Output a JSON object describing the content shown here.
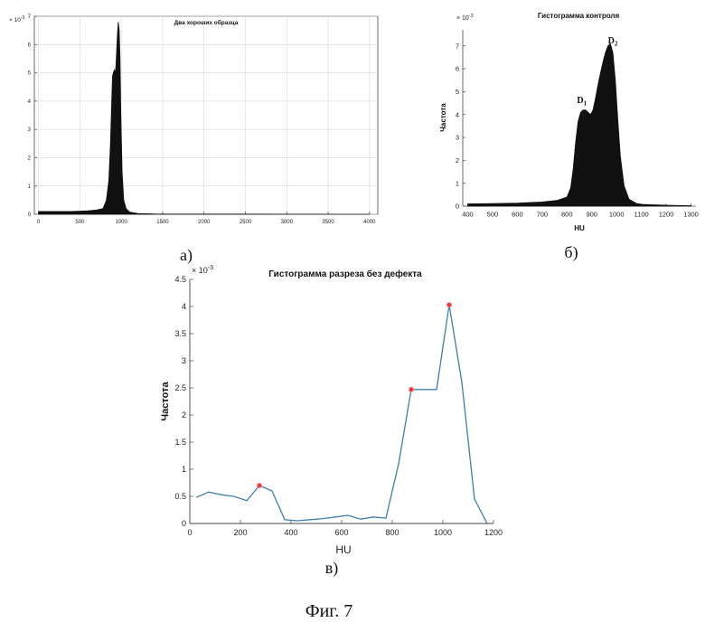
{
  "figure_caption": "Фиг. 7",
  "chart_data": [
    {
      "type": "area",
      "panel_label": "а)",
      "title": "Два хороших образца",
      "xlabel": "",
      "ylabel": "",
      "y_exponent": "× 10^-3",
      "y_exponent_base": "× 10",
      "y_exponent_power": "-3",
      "xlim": [
        -50,
        4100
      ],
      "ylim": [
        0,
        0.007
      ],
      "grid": true,
      "x_ticks": [
        "0",
        "500",
        "1000",
        "1500",
        "2000",
        "2500",
        "3000",
        "3500",
        "4000"
      ],
      "y_ticks": [
        "0",
        "1",
        "2",
        "3",
        "4",
        "5",
        "6",
        "7"
      ],
      "x": [
        0,
        200,
        400,
        600,
        700,
        780,
        820,
        850,
        870,
        885,
        895,
        905,
        915,
        925,
        935,
        945,
        955,
        965,
        975,
        985,
        995,
        1010,
        1030,
        1060,
        1100,
        1200,
        1400,
        4000
      ],
      "y": [
        0.0001,
        0.0001,
        0.0001,
        0.00012,
        0.00015,
        0.0002,
        0.0005,
        0.0012,
        0.0025,
        0.004,
        0.0049,
        0.005,
        0.0051,
        0.005,
        0.0052,
        0.0058,
        0.0064,
        0.0068,
        0.0065,
        0.0055,
        0.0035,
        0.0015,
        0.0005,
        0.0002,
        8e-05,
        3e-05,
        1e-05,
        0.0
      ]
    },
    {
      "type": "area",
      "panel_label": "б)",
      "title": "Гистограмма контроля",
      "xlabel": "HU",
      "ylabel": "Частота",
      "y_exponent": "× 10^-3",
      "y_exponent_base": "× 10",
      "y_exponent_power": "-3",
      "xlim": [
        380,
        1320
      ],
      "ylim": [
        0,
        0.0077
      ],
      "grid": false,
      "x_ticks": [
        "400",
        "500",
        "600",
        "700",
        "800",
        "900",
        "1000",
        "1100",
        "1200",
        "1300"
      ],
      "y_ticks": [
        "0",
        "1",
        "2",
        "3",
        "4",
        "5",
        "6",
        "7"
      ],
      "annotations": [
        {
          "text": "D1",
          "base": "D",
          "sub": "1",
          "x": 860,
          "y": 0.0045
        },
        {
          "text": "D2",
          "base": "D",
          "sub": "2",
          "x": 985,
          "y": 0.0071
        }
      ],
      "x": [
        400,
        500,
        600,
        700,
        760,
        800,
        815,
        825,
        835,
        845,
        855,
        865,
        875,
        885,
        895,
        905,
        915,
        925,
        935,
        945,
        955,
        965,
        975,
        985,
        995,
        1005,
        1015,
        1030,
        1050,
        1080,
        1100,
        1200,
        1300
      ],
      "y": [
        0.0001,
        0.00011,
        0.00013,
        0.00018,
        0.00025,
        0.0004,
        0.0008,
        0.0016,
        0.0028,
        0.0037,
        0.0041,
        0.0042,
        0.0042,
        0.0041,
        0.004,
        0.0042,
        0.0047,
        0.0053,
        0.0058,
        0.0063,
        0.0067,
        0.007,
        0.0071,
        0.0067,
        0.0055,
        0.0038,
        0.0022,
        0.0009,
        0.0003,
        0.00012,
        8e-05,
        4e-05,
        2e-05
      ]
    },
    {
      "type": "line",
      "panel_label": "в)",
      "title": "Гистограмма разреза без дефекта",
      "xlabel": "HU",
      "ylabel": "Частота",
      "y_exponent": "× 10^-3",
      "y_exponent_base": "× 10",
      "y_exponent_power": "-3",
      "xlim": [
        0,
        1200
      ],
      "ylim": [
        0,
        0.0045
      ],
      "grid": false,
      "x_ticks": [
        "0",
        "200",
        "400",
        "600",
        "800",
        "1000",
        "1200"
      ],
      "y_ticks": [
        "0",
        "0.5",
        "1",
        "1.5",
        "2",
        "2.5",
        "3",
        "3.5",
        "4",
        "4.5"
      ],
      "x": [
        25,
        75,
        125,
        175,
        225,
        275,
        325,
        375,
        425,
        475,
        525,
        575,
        625,
        675,
        725,
        775,
        825,
        875,
        925,
        975,
        1025,
        1075,
        1125,
        1175
      ],
      "y": [
        0.00048,
        0.00058,
        0.00053,
        0.0005,
        0.00042,
        0.0007,
        0.0006,
        7e-05,
        5e-05,
        7e-05,
        9e-05,
        0.00012,
        0.00015,
        8e-05,
        0.00012,
        0.0001,
        0.0011,
        0.00247,
        0.00247,
        0.00247,
        0.00403,
        0.0026,
        0.00045,
        0.0
      ],
      "peaks": [
        {
          "x": 275,
          "y": 0.0007
        },
        {
          "x": 875,
          "y": 0.00247
        },
        {
          "x": 1025,
          "y": 0.00403
        }
      ],
      "line_color": "#3f7fa6",
      "peak_color": "#e8363a"
    }
  ]
}
